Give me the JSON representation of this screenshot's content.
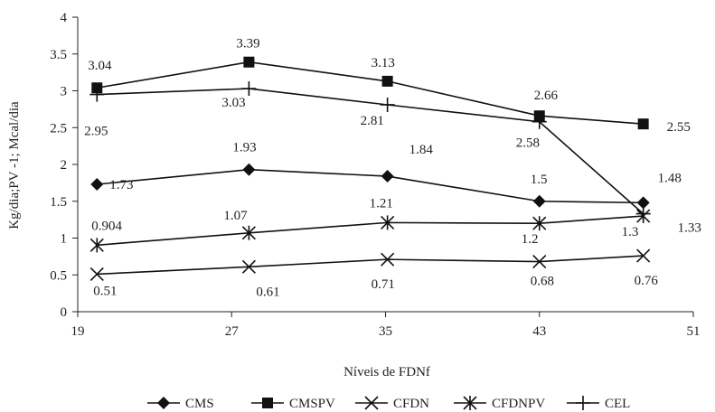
{
  "chart_data": {
    "type": "line",
    "xlabel": "Níveis de FDNf",
    "ylabel": "Kg/dia;PV -1; Mcal/dia",
    "xlim": [
      19,
      51
    ],
    "ylim": [
      0,
      4
    ],
    "x_ticks": [
      "19",
      "27",
      "35",
      "43",
      "51"
    ],
    "y_ticks": [
      "0",
      "0.5",
      "1",
      "1.5",
      "2",
      "2.5",
      "3",
      "3.5",
      "4"
    ],
    "grid": false,
    "legend_position": "bottom",
    "series": [
      {
        "name": "CMS",
        "marker": "diamond",
        "points": [
          {
            "x": 20,
            "y": 1.73,
            "label": "1.73"
          },
          {
            "x": 27.9,
            "y": 1.93,
            "label": "1.93"
          },
          {
            "x": 35.1,
            "y": 1.84,
            "label": "1.84"
          },
          {
            "x": 43,
            "y": 1.5,
            "label": "1.5"
          },
          {
            "x": 48.4,
            "y": 1.48,
            "label": "1.48"
          }
        ]
      },
      {
        "name": "CMSPV",
        "marker": "square",
        "points": [
          {
            "x": 20,
            "y": 3.04,
            "label": "3.04"
          },
          {
            "x": 27.9,
            "y": 3.39,
            "label": "3.39"
          },
          {
            "x": 35.1,
            "y": 3.13,
            "label": "3.13"
          },
          {
            "x": 43,
            "y": 2.66,
            "label": "2.66"
          },
          {
            "x": 48.4,
            "y": 2.55,
            "label": "2.55"
          }
        ]
      },
      {
        "name": "CFDN",
        "marker": "x",
        "points": [
          {
            "x": 20,
            "y": 0.51,
            "label": "0.51"
          },
          {
            "x": 27.9,
            "y": 0.61,
            "label": "0.61"
          },
          {
            "x": 35.1,
            "y": 0.71,
            "label": "0.71"
          },
          {
            "x": 43,
            "y": 0.68,
            "label": "0.68"
          },
          {
            "x": 48.4,
            "y": 0.76,
            "label": "0.76"
          }
        ]
      },
      {
        "name": "CFDNPV",
        "marker": "asterisk",
        "points": [
          {
            "x": 20,
            "y": 0.904,
            "label": "0.904"
          },
          {
            "x": 27.9,
            "y": 1.07,
            "label": "1.07"
          },
          {
            "x": 35.1,
            "y": 1.21,
            "label": "1.21"
          },
          {
            "x": 43,
            "y": 1.2,
            "label": "1.2"
          },
          {
            "x": 48.4,
            "y": 1.3,
            "label": "1.3"
          }
        ]
      },
      {
        "name": "CEL",
        "marker": "plus",
        "points": [
          {
            "x": 20,
            "y": 2.95,
            "label": "2.95"
          },
          {
            "x": 27.9,
            "y": 3.03,
            "label": "3.03"
          },
          {
            "x": 35.1,
            "y": 2.81,
            "label": "2.81"
          },
          {
            "x": 43,
            "y": 2.58,
            "label": "2.58"
          },
          {
            "x": 48.4,
            "y": 1.33,
            "label": "1.33"
          }
        ]
      }
    ]
  }
}
